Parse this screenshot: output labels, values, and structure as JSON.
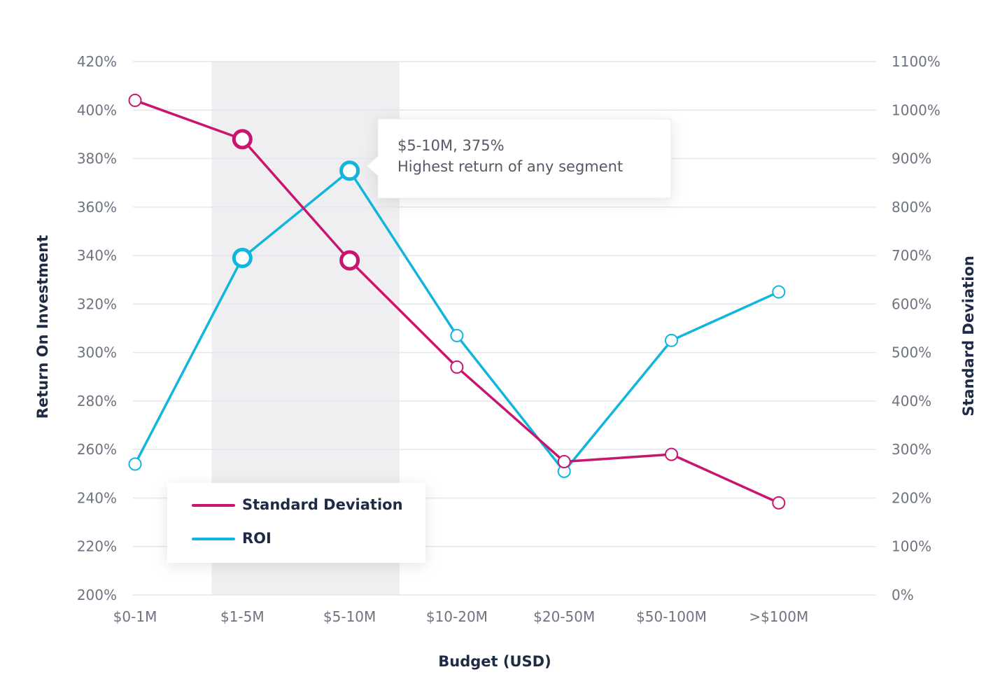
{
  "chart_data": {
    "type": "line",
    "categories": [
      "$0-1M",
      "$1-5M",
      "$5-10M",
      "$10-20M",
      "$20-50M",
      "$50-100M",
      ">$100M"
    ],
    "series": [
      {
        "name": "Standard Deviation",
        "axis": "right",
        "color": "#c8166e",
        "values": [
          1020,
          940,
          690,
          470,
          275,
          290,
          190
        ],
        "highlighted_points": [
          1,
          2
        ]
      },
      {
        "name": "ROI",
        "axis": "left",
        "color": "#12b5dc",
        "values": [
          254,
          339,
          375,
          307,
          251,
          305,
          325
        ],
        "highlighted_points": [
          1,
          2
        ]
      }
    ],
    "xlabel": "Budget (USD)",
    "ylabel": "Return On Investment",
    "y2label": "Standard Deviation",
    "ylim": [
      200,
      420
    ],
    "yticks": [
      "200%",
      "220%",
      "240%",
      "260%",
      "280%",
      "300%",
      "320%",
      "340%",
      "360%",
      "380%",
      "400%",
      "420%"
    ],
    "y2lim": [
      0,
      1100
    ],
    "y2ticks": [
      "0%",
      "100%",
      "200%",
      "300%",
      "400%",
      "500%",
      "600%",
      "700%",
      "800%",
      "900%",
      "1000%",
      "1100%"
    ],
    "highlight_band": {
      "categories": [
        "$1-5M",
        "$5-10M"
      ],
      "color": "#efeff1"
    },
    "annotation": {
      "line1": "$5-10M, 375%",
      "line2": "Highest return of any segment",
      "category": "$5-10M",
      "series": "ROI"
    },
    "legend": {
      "position": "bottom-left",
      "items": [
        "Standard Deviation",
        "ROI"
      ]
    },
    "grid": true
  }
}
